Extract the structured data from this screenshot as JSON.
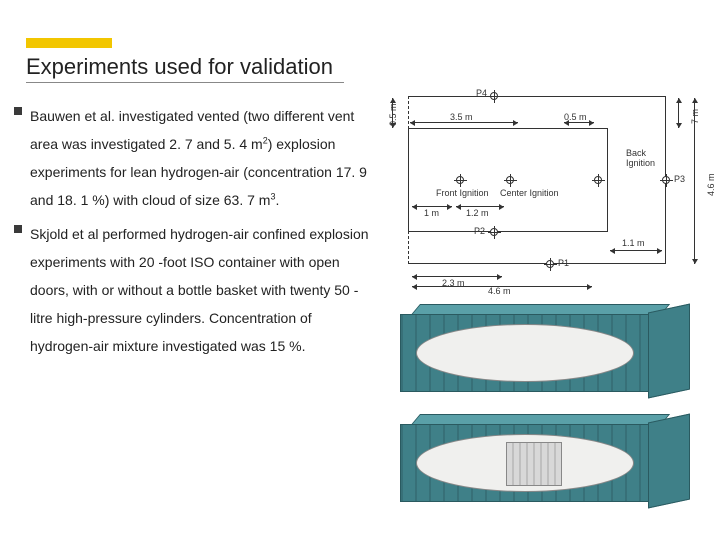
{
  "accent_color": "#f2c600",
  "title": "Experiments used for validation",
  "bullets": [
    {
      "html": "Bauwen et al. investigated vented (two different vent area was investigated 2. 7 and 5. 4 m<sup>2</sup>) explosion experiments for lean hydrogen-air (concentration 17. 9 and 18. 1 %) with cloud of size 63. 7 m<sup>3</sup>."
    },
    {
      "html": "Skjold et al performed hydrogen-air confined explosion experiments with 20 -foot ISO container with open doors, with or without a bottle basket with twenty 50 -litre high-pressure cylinders. Concentration of hydrogen-air mixture investigated was 15 %."
    }
  ],
  "diagram": {
    "points": [
      "P1",
      "P2",
      "P3",
      "P4"
    ],
    "labels": {
      "back_ignition": "Back Ignition",
      "front_ignition": "Front Ignition",
      "center_ignition": "Center Ignition"
    },
    "dims": {
      "top_left": "3.5 m",
      "top_right": "0.5 m",
      "mid_left_a": "1 m",
      "mid_left_b": "1.2 m",
      "bot_a": "2.3 m",
      "bot_b": "4.6 m",
      "bot_right": "1.1 m",
      "left_v": "0.5 m",
      "right_v_top": "7 m",
      "right_v_full": "4.6 m"
    }
  },
  "containers": {
    "body_color": "#3f8088",
    "count": 2,
    "second_has_basket": true
  }
}
